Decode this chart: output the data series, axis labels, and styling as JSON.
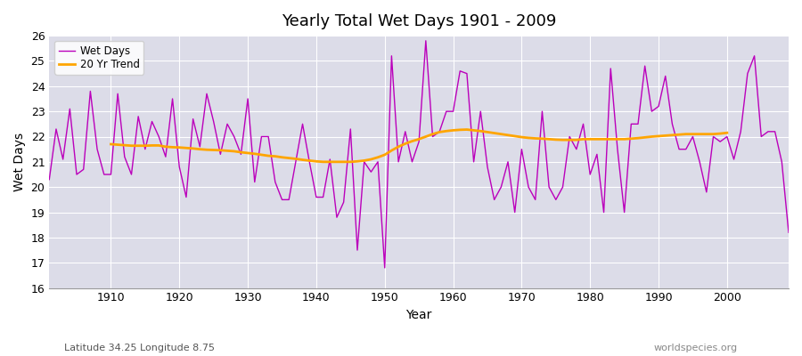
{
  "title": "Yearly Total Wet Days 1901 - 2009",
  "xlabel": "Year",
  "ylabel": "Wet Days",
  "subtitle_left": "Latitude 34.25 Longitude 8.75",
  "subtitle_right": "worldspecies.org",
  "wet_days_color": "#BB00BB",
  "trend_color": "#FFA500",
  "background_color": "#DCDCE8",
  "grid_color": "#FFFFFF",
  "spine_color": "#999999",
  "ylim": [
    16,
    26
  ],
  "yticks": [
    16,
    17,
    18,
    19,
    20,
    21,
    22,
    23,
    24,
    25,
    26
  ],
  "xticks": [
    1910,
    1920,
    1930,
    1940,
    1950,
    1960,
    1970,
    1980,
    1990,
    2000
  ],
  "xlim": [
    1901,
    2009
  ],
  "years": [
    1901,
    1902,
    1903,
    1904,
    1905,
    1906,
    1907,
    1908,
    1909,
    1910,
    1911,
    1912,
    1913,
    1914,
    1915,
    1916,
    1917,
    1918,
    1919,
    1920,
    1921,
    1922,
    1923,
    1924,
    1925,
    1926,
    1927,
    1928,
    1929,
    1930,
    1931,
    1932,
    1933,
    1934,
    1935,
    1936,
    1937,
    1938,
    1939,
    1940,
    1941,
    1942,
    1943,
    1944,
    1945,
    1946,
    1947,
    1948,
    1949,
    1950,
    1951,
    1952,
    1953,
    1954,
    1955,
    1956,
    1957,
    1958,
    1959,
    1960,
    1961,
    1962,
    1963,
    1964,
    1965,
    1966,
    1967,
    1968,
    1969,
    1970,
    1971,
    1972,
    1973,
    1974,
    1975,
    1976,
    1977,
    1978,
    1979,
    1980,
    1981,
    1982,
    1983,
    1984,
    1985,
    1986,
    1987,
    1988,
    1989,
    1990,
    1991,
    1992,
    1993,
    1994,
    1995,
    1996,
    1997,
    1998,
    1999,
    2000,
    2001,
    2002,
    2003,
    2004,
    2005,
    2006,
    2007,
    2008,
    2009
  ],
  "wet_days": [
    20.3,
    22.3,
    21.1,
    23.1,
    20.5,
    20.7,
    23.8,
    21.5,
    20.5,
    20.5,
    23.7,
    21.2,
    20.5,
    22.8,
    21.5,
    22.6,
    22.0,
    21.2,
    23.5,
    20.8,
    19.6,
    22.7,
    21.6,
    23.7,
    22.6,
    21.3,
    22.5,
    22.0,
    21.3,
    23.5,
    20.2,
    22.0,
    22.0,
    20.2,
    19.5,
    19.5,
    21.0,
    22.5,
    21.0,
    19.6,
    19.6,
    21.1,
    18.8,
    19.4,
    22.3,
    17.5,
    21.0,
    20.6,
    21.0,
    16.8,
    25.2,
    21.0,
    22.2,
    21.0,
    21.8,
    25.8,
    22.0,
    22.2,
    23.0,
    23.0,
    24.6,
    24.5,
    21.0,
    23.0,
    20.8,
    19.5,
    20.0,
    21.0,
    19.0,
    21.5,
    20.0,
    19.5,
    23.0,
    20.0,
    19.5,
    20.0,
    22.0,
    21.5,
    22.5,
    20.5,
    21.3,
    19.0,
    24.7,
    21.5,
    19.0,
    22.5,
    22.5,
    24.8,
    23.0,
    23.2,
    24.4,
    22.5,
    21.5,
    21.5,
    22.0,
    21.0,
    19.8,
    22.0,
    21.8,
    22.0,
    21.1,
    22.2,
    24.5,
    25.2,
    22.0,
    22.2,
    22.2,
    21.0,
    18.2
  ],
  "trend": [
    null,
    null,
    null,
    null,
    null,
    null,
    null,
    null,
    null,
    21.7,
    21.68,
    21.66,
    21.64,
    21.64,
    21.64,
    21.65,
    21.65,
    21.6,
    21.58,
    21.57,
    21.55,
    21.53,
    21.5,
    21.48,
    21.47,
    21.46,
    21.44,
    21.42,
    21.38,
    21.35,
    21.32,
    21.28,
    21.24,
    21.22,
    21.18,
    21.15,
    21.12,
    21.08,
    21.05,
    21.02,
    21.0,
    21.0,
    21.0,
    21.0,
    21.0,
    21.02,
    21.05,
    21.1,
    21.18,
    21.28,
    21.45,
    21.6,
    21.72,
    21.82,
    21.9,
    22.0,
    22.1,
    22.18,
    22.22,
    22.25,
    22.27,
    22.28,
    22.25,
    22.22,
    22.18,
    22.14,
    22.1,
    22.06,
    22.02,
    21.98,
    21.95,
    21.93,
    21.92,
    21.9,
    21.88,
    21.87,
    21.87,
    21.87,
    21.9,
    21.9,
    21.9,
    21.9,
    21.9,
    21.9,
    21.9,
    21.92,
    21.94,
    21.97,
    22.0,
    22.02,
    22.04,
    22.06,
    22.08,
    22.1,
    22.1,
    22.1,
    22.1,
    22.1,
    22.12,
    22.15,
    null,
    null,
    null,
    null,
    null,
    null,
    null,
    null,
    null
  ]
}
